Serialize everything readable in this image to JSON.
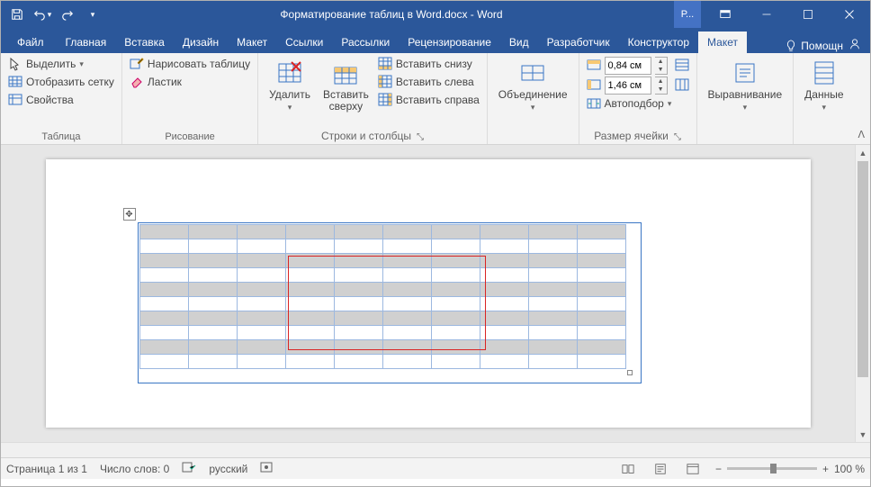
{
  "title": "Форматирование таблиц в Word.docx - Word",
  "qat": {
    "save": "save",
    "undo": "undo",
    "redo": "redo"
  },
  "win_account": "Р...",
  "tabs": [
    "Файл",
    "Главная",
    "Вставка",
    "Дизайн",
    "Макет",
    "Ссылки",
    "Рассылки",
    "Рецензирование",
    "Вид",
    "Разработчик",
    "Конструктор",
    "Макет"
  ],
  "active_tab_index": 11,
  "help_label": "Помощн",
  "ribbon": {
    "g_table": {
      "label": "Таблица",
      "select": "Выделить",
      "grid": "Отобразить сетку",
      "props": "Свойства"
    },
    "g_draw": {
      "label": "Рисование",
      "draw": "Нарисовать таблицу",
      "eraser": "Ластик"
    },
    "g_rowscols": {
      "label": "Строки и столбцы",
      "delete": "Удалить",
      "insert_top": "Вставить\nсверху",
      "ins_below": "Вставить снизу",
      "ins_left": "Вставить слева",
      "ins_right": "Вставить справа"
    },
    "g_merge": {
      "label": "",
      "merge": "Объединение"
    },
    "g_cellsize": {
      "label": "Размер ячейки",
      "height": "0,84 см",
      "width": "1,46 см",
      "autofit": "Автоподбор"
    },
    "g_align": {
      "label": "",
      "align": "Выравнивание"
    },
    "g_data": {
      "label": "",
      "data": "Данные"
    }
  },
  "table": {
    "rows": 10,
    "cols": 10,
    "banded_rows": [
      0,
      2,
      4,
      6,
      8
    ],
    "border_color": "#9cb8e0",
    "band_color": "#d0d0d0",
    "outer_sel_color": "#3a76c4",
    "inner_sel_color": "#d92424",
    "inner_sel": {
      "r0": 2,
      "c0": 3,
      "r1": 7,
      "c1": 6
    }
  },
  "status": {
    "page": "Страница 1 из 1",
    "words": "Число слов: 0",
    "lang": "русский",
    "zoom": "100 %"
  }
}
